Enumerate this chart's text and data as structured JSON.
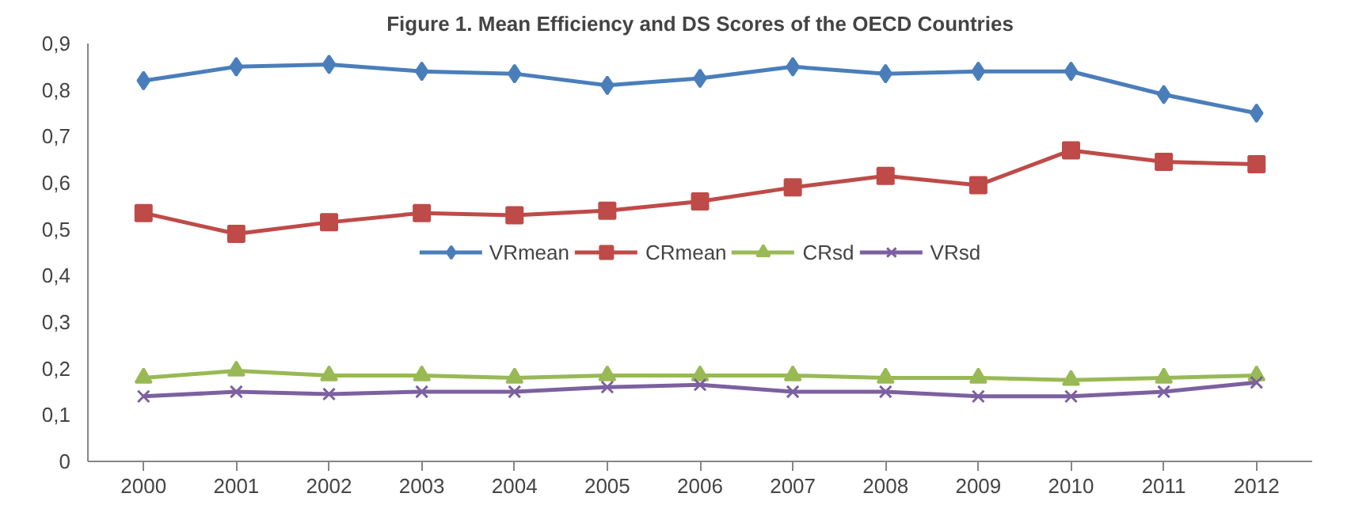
{
  "chart_data": {
    "type": "line",
    "title": "Figure 1. Mean Efficiency and DS Scores of the OECD Countries",
    "categories": [
      "2000",
      "2001",
      "2002",
      "2003",
      "2004",
      "2005",
      "2006",
      "2007",
      "2008",
      "2009",
      "2010",
      "2011",
      "2012"
    ],
    "series": [
      {
        "name": "VRmean",
        "color": "#4a7ebb",
        "marker": "diamond",
        "values": [
          0.82,
          0.85,
          0.855,
          0.84,
          0.835,
          0.81,
          0.825,
          0.85,
          0.835,
          0.84,
          0.84,
          0.79,
          0.75
        ]
      },
      {
        "name": "CRmean",
        "color": "#be4b48",
        "marker": "square",
        "values": [
          0.535,
          0.49,
          0.515,
          0.535,
          0.53,
          0.54,
          0.56,
          0.59,
          0.615,
          0.595,
          0.67,
          0.645,
          0.64
        ]
      },
      {
        "name": "CRsd",
        "color": "#98b954",
        "marker": "triangle",
        "values": [
          0.18,
          0.195,
          0.185,
          0.185,
          0.18,
          0.185,
          0.185,
          0.185,
          0.18,
          0.18,
          0.175,
          0.18,
          0.185
        ]
      },
      {
        "name": "VRsd",
        "color": "#7d60a0",
        "marker": "cross",
        "values": [
          0.14,
          0.15,
          0.145,
          0.15,
          0.15,
          0.16,
          0.165,
          0.15,
          0.15,
          0.14,
          0.14,
          0.15,
          0.17
        ]
      }
    ],
    "ylim": [
      0,
      0.9
    ],
    "yticks": [
      0,
      {
        "value": 0.1,
        "label": "0,1"
      },
      {
        "value": 0.2,
        "label": "0,2"
      },
      {
        "value": 0.3,
        "label": "0,3"
      },
      {
        "value": 0.4,
        "label": "0,4"
      },
      {
        "value": 0.5,
        "label": "0,5"
      },
      {
        "value": 0.6,
        "label": "0,6"
      },
      {
        "value": 0.7,
        "label": "0,7"
      },
      {
        "value": 0.8,
        "label": "0,8"
      },
      {
        "value": 0.9,
        "label": "0,9"
      }
    ],
    "grid": false,
    "legend": "center",
    "line_style": "solid"
  }
}
